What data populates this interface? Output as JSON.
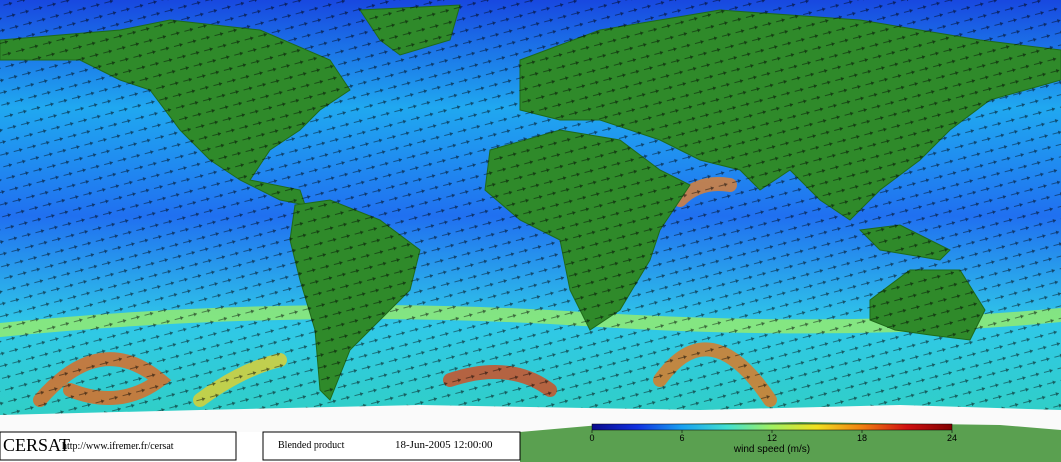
{
  "header": {
    "brand": "CERSAT",
    "url": "http://www.ifremer.fr/cersat",
    "product": "Blended product",
    "date": "18-Jun-2005 12:00:00"
  },
  "colorbar": {
    "label": "wind speed (m/s)",
    "lim": [
      0,
      24
    ],
    "ticks": [
      0,
      6,
      12,
      18,
      24
    ],
    "colors": [
      "#0a0a8c",
      "#1030e0",
      "#18a0f0",
      "#40e0d0",
      "#a0f060",
      "#f0e020",
      "#f08010",
      "#d01010",
      "#800000"
    ]
  }
}
